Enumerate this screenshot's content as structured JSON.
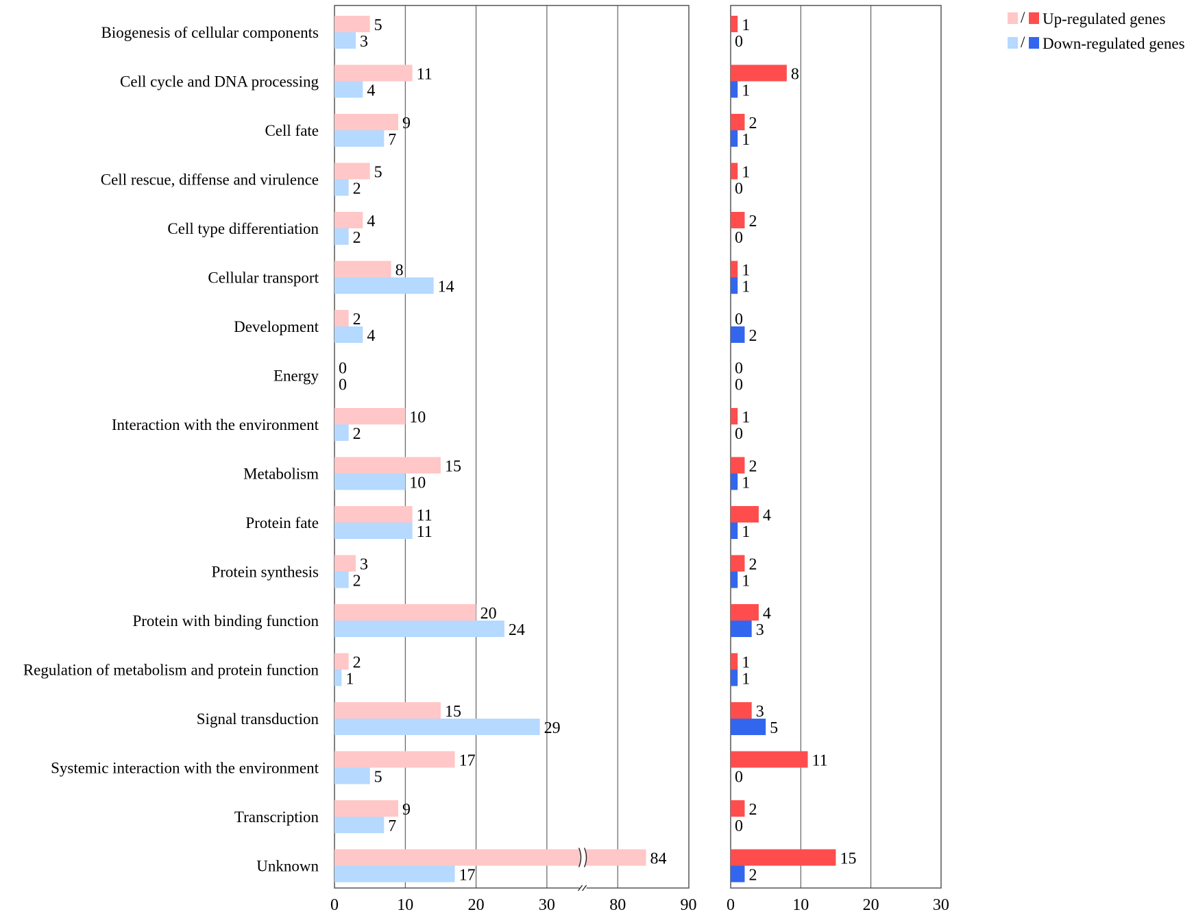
{
  "chart_data": [
    {
      "type": "bar",
      "orientation": "horizontal",
      "axis_break": {
        "from": 35,
        "to": 75
      },
      "xlim": [
        0,
        90
      ],
      "xticks": [
        "0",
        "10",
        "20",
        "30",
        "80",
        "90"
      ],
      "categories": [
        "Biogenesis of cellular components",
        "Cell cycle and DNA processing",
        "Cell fate",
        "Cell rescue, diffense and virulence",
        "Cell type differentiation",
        "Cellular transport",
        "Development",
        "Energy",
        "Interaction with the environment",
        "Metabolism",
        "Protein fate",
        "Protein synthesis",
        "Protein with binding function",
        "Regulation of metabolism and protein function",
        "Signal transduction",
        "Systemic interaction with the environment",
        "Transcription",
        "Unknown"
      ],
      "series": [
        {
          "name": "Up-regulated genes",
          "color": "#ffc7c7",
          "values": [
            5,
            11,
            9,
            5,
            4,
            8,
            2,
            0,
            10,
            15,
            11,
            3,
            20,
            2,
            15,
            17,
            9,
            84
          ]
        },
        {
          "name": "Down-regulated genes",
          "color": "#b5d9ff",
          "values": [
            3,
            4,
            7,
            2,
            2,
            14,
            4,
            0,
            2,
            10,
            11,
            2,
            24,
            1,
            29,
            5,
            7,
            17
          ]
        }
      ],
      "grid": true
    },
    {
      "type": "bar",
      "orientation": "horizontal",
      "xlim": [
        0,
        30
      ],
      "xticks": [
        "0",
        "10",
        "20",
        "30"
      ],
      "series": [
        {
          "name": "Up-regulated genes",
          "color": "#ff4d4d",
          "values": [
            1,
            8,
            2,
            1,
            2,
            1,
            0,
            0,
            1,
            2,
            4,
            2,
            4,
            1,
            3,
            11,
            2,
            15
          ]
        },
        {
          "name": "Down-regulated genes",
          "color": "#3366ee",
          "values": [
            0,
            1,
            1,
            0,
            0,
            1,
            2,
            0,
            0,
            1,
            1,
            1,
            3,
            1,
            5,
            0,
            0,
            2
          ]
        }
      ],
      "grid": true
    }
  ],
  "legend": {
    "placement": "top-right",
    "separator": "/",
    "items": [
      {
        "label": "Up-regulated genes",
        "light_color": "#ffc7c7",
        "dark_color": "#ff4d4d"
      },
      {
        "label": "Down-regulated genes",
        "light_color": "#b5d9ff",
        "dark_color": "#3366ee"
      }
    ]
  }
}
